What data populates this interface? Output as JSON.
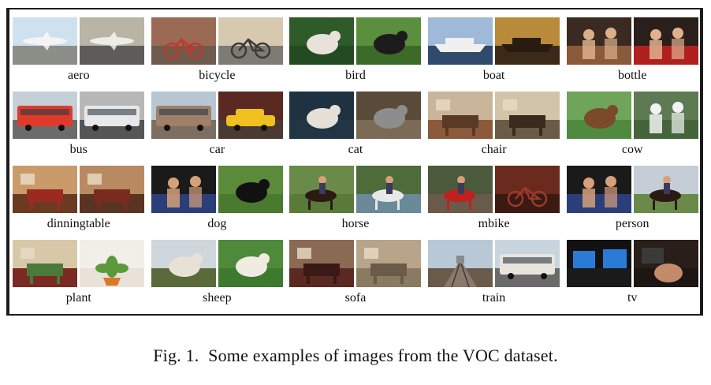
{
  "categories": [
    {
      "label": "aero",
      "thumbs": [
        {
          "sky": "#cfe0ee",
          "ground": "#8c8f88",
          "obj": "#f4f4f4",
          "shape": "plane"
        },
        {
          "sky": "#b9b4a5",
          "ground": "#5d5c59",
          "obj": "#ecece8",
          "shape": "plane"
        }
      ]
    },
    {
      "label": "bicycle",
      "thumbs": [
        {
          "sky": "#9a6a55",
          "ground": "#6e5b4d",
          "obj": "#c0392b",
          "shape": "bike"
        },
        {
          "sky": "#d7c9b0",
          "ground": "#7e7a74",
          "obj": "#3a3a3a",
          "shape": "bike"
        }
      ]
    },
    {
      "label": "bird",
      "thumbs": [
        {
          "sky": "#2f5a2a",
          "ground": "#244a22",
          "obj": "#e8e2da",
          "shape": "blob"
        },
        {
          "sky": "#5b8f3d",
          "ground": "#3c6b29",
          "obj": "#1c1c1c",
          "shape": "blob"
        }
      ]
    },
    {
      "label": "boat",
      "thumbs": [
        {
          "sky": "#9fb9d8",
          "ground": "#2f4a6b",
          "obj": "#f0f0f0",
          "shape": "ship"
        },
        {
          "sky": "#b98a3a",
          "ground": "#3b2a18",
          "obj": "#2a1b10",
          "shape": "ship"
        }
      ]
    },
    {
      "label": "bottle",
      "thumbs": [
        {
          "sky": "#3b2a22",
          "ground": "#8a5a3a",
          "obj": "#d9b08a",
          "shape": "people"
        },
        {
          "sky": "#2a1f1a",
          "ground": "#b0201e",
          "obj": "#e0b090",
          "shape": "people"
        }
      ]
    },
    {
      "label": "bus",
      "thumbs": [
        {
          "sky": "#c4cfd6",
          "ground": "#6b6b6b",
          "obj": "#e03a2a",
          "shape": "bus"
        },
        {
          "sky": "#b7b7b7",
          "ground": "#555555",
          "obj": "#e8e8e8",
          "shape": "bus"
        }
      ]
    },
    {
      "label": "car",
      "thumbs": [
        {
          "sky": "#b8c7d3",
          "ground": "#7d6e62",
          "obj": "#a08068",
          "shape": "bus"
        },
        {
          "sky": "#5a2a22",
          "ground": "#4a3a32",
          "obj": "#f0c020",
          "shape": "car"
        }
      ]
    },
    {
      "label": "cat",
      "thumbs": [
        {
          "sky": "#1f3242",
          "ground": "#223545",
          "obj": "#e6e0d8",
          "shape": "blob"
        },
        {
          "sky": "#5a4a3a",
          "ground": "#7a6a56",
          "obj": "#8d8d8d",
          "shape": "blob"
        }
      ]
    },
    {
      "label": "chair",
      "thumbs": [
        {
          "sky": "#c9b59a",
          "ground": "#8a5a3a",
          "obj": "#5a3a25",
          "shape": "room"
        },
        {
          "sky": "#d2c4aa",
          "ground": "#6a5a48",
          "obj": "#3a2a1e",
          "shape": "room"
        }
      ]
    },
    {
      "label": "cow",
      "thumbs": [
        {
          "sky": "#6ea55a",
          "ground": "#4f8a3e",
          "obj": "#7a4a2a",
          "shape": "blob"
        },
        {
          "sky": "#5e7a52",
          "ground": "#46643c",
          "obj": "#f2f2f2",
          "shape": "people"
        }
      ]
    },
    {
      "label": "dinningtable",
      "thumbs": [
        {
          "sky": "#c99a6a",
          "ground": "#6a3a22",
          "obj": "#9a2a22",
          "shape": "room"
        },
        {
          "sky": "#b88a62",
          "ground": "#5a3422",
          "obj": "#7a2a1e",
          "shape": "room"
        }
      ]
    },
    {
      "label": "dog",
      "thumbs": [
        {
          "sky": "#1a1a1a",
          "ground": "#2a3f7a",
          "obj": "#d6a07a",
          "shape": "people"
        },
        {
          "sky": "#5a8a3a",
          "ground": "#4a7a2e",
          "obj": "#111111",
          "shape": "blob"
        }
      ]
    },
    {
      "label": "horse",
      "thumbs": [
        {
          "sky": "#6a8a4a",
          "ground": "#5a7a3a",
          "obj": "#2a1a12",
          "shape": "rider"
        },
        {
          "sky": "#4e6b3a",
          "ground": "#6a8a9a",
          "obj": "#e8e8e8",
          "shape": "rider"
        }
      ]
    },
    {
      "label": "mbike",
      "thumbs": [
        {
          "sky": "#4a5a3a",
          "ground": "#6a5a4a",
          "obj": "#c0201e",
          "shape": "rider"
        },
        {
          "sky": "#6a2a1e",
          "ground": "#3a1a12",
          "obj": "#9a3a2a",
          "shape": "bike"
        }
      ]
    },
    {
      "label": "person",
      "thumbs": [
        {
          "sky": "#1a1a1a",
          "ground": "#2a3f7a",
          "obj": "#d6a07a",
          "shape": "people"
        },
        {
          "sky": "#c5cdd6",
          "ground": "#6a8a4a",
          "obj": "#2a1a12",
          "shape": "rider"
        }
      ]
    },
    {
      "label": "plant",
      "thumbs": [
        {
          "sky": "#d8c8a8",
          "ground": "#7a2a22",
          "obj": "#4a7a3a",
          "shape": "room"
        },
        {
          "sky": "#f2eee8",
          "ground": "#e8e2d8",
          "obj": "#5a9a3a",
          "shape": "plant"
        }
      ]
    },
    {
      "label": "sheep",
      "thumbs": [
        {
          "sky": "#cfd6dc",
          "ground": "#5a6a3a",
          "obj": "#e8e2d6",
          "shape": "blob"
        },
        {
          "sky": "#4f8a3a",
          "ground": "#3e7a2e",
          "obj": "#f0ece2",
          "shape": "blob"
        }
      ]
    },
    {
      "label": "sofa",
      "thumbs": [
        {
          "sky": "#8a6a52",
          "ground": "#5a2a22",
          "obj": "#3a1a16",
          "shape": "room"
        },
        {
          "sky": "#b8a488",
          "ground": "#8a7a62",
          "obj": "#6a5a48",
          "shape": "room"
        }
      ]
    },
    {
      "label": "train",
      "thumbs": [
        {
          "sky": "#b8c8d6",
          "ground": "#6a5a4a",
          "obj": "#8a8a8a",
          "shape": "rails"
        },
        {
          "sky": "#c8d4de",
          "ground": "#6a6a6a",
          "obj": "#e8e4dc",
          "shape": "bus"
        }
      ]
    },
    {
      "label": "tv",
      "thumbs": [
        {
          "sky": "#121212",
          "ground": "#1a1a1a",
          "obj": "#2a7ad6",
          "shape": "screen"
        },
        {
          "sky": "#2a1e1a",
          "ground": "#1e1612",
          "obj": "#e0a07a",
          "shape": "lamp"
        }
      ]
    }
  ],
  "caption": {
    "number": "Fig. 1.",
    "text": "Some examples of images from the VOC dataset."
  }
}
